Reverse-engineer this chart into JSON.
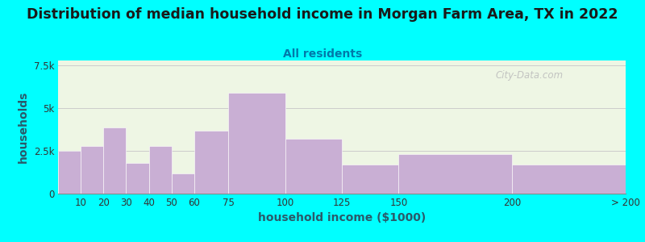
{
  "title": "Distribution of median household income in Morgan Farm Area, TX in 2022",
  "subtitle": "All residents",
  "xlabel": "household income ($1000)",
  "ylabel": "households",
  "bar_color": "#c9afd4",
  "background_color": "#00ffff",
  "plot_bg_color": "#eef6e4",
  "watermark": "City-Data.com",
  "title_fontsize": 12.5,
  "subtitle_fontsize": 10,
  "axis_label_fontsize": 10,
  "bar_edges": [
    0,
    10,
    20,
    30,
    40,
    50,
    60,
    75,
    100,
    125,
    150,
    200,
    250
  ],
  "tick_positions": [
    10,
    20,
    30,
    40,
    50,
    60,
    75,
    100,
    125,
    150,
    200,
    250
  ],
  "tick_labels": [
    "10",
    "20",
    "30",
    "40",
    "50",
    "60",
    "75",
    "100",
    "125",
    "150",
    "200",
    "> 200"
  ],
  "values": [
    2500,
    2800,
    3900,
    1800,
    2800,
    1200,
    3700,
    5900,
    3200,
    1700,
    2300,
    1700
  ],
  "yticks": [
    0,
    2500,
    5000,
    7500
  ],
  "ytick_labels": [
    "0",
    "2.5k",
    "5k",
    "7.5k"
  ],
  "ylim": [
    0,
    7800
  ],
  "xlim": [
    0,
    250
  ]
}
